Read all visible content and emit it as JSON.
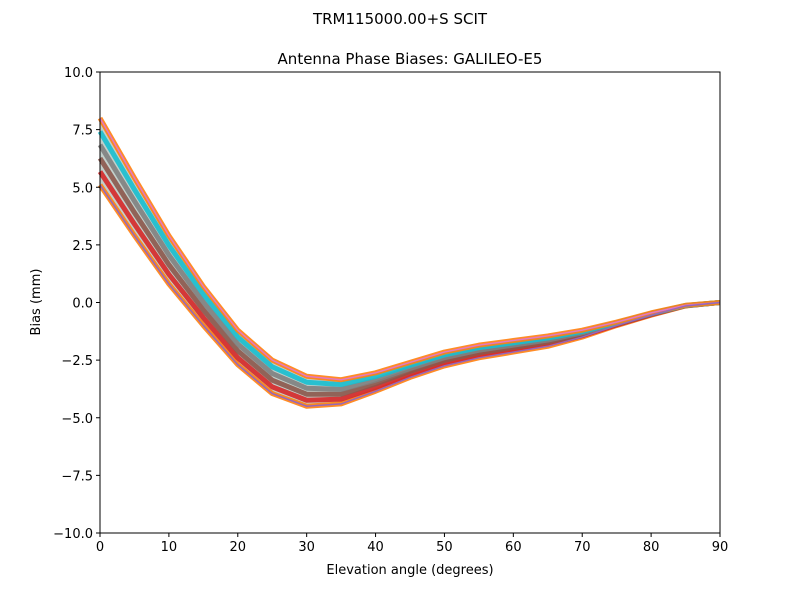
{
  "chart_data": {
    "type": "line",
    "suptitle": "TRM115000.00+S  SCIT",
    "title": "Antenna Phase Biases: GALILEO-E5",
    "xlabel": "Elevation angle (degrees)",
    "ylabel": "Bias (mm)",
    "xlim": [
      0,
      90
    ],
    "ylim": [
      -10,
      10
    ],
    "xticks": [
      0,
      10,
      20,
      30,
      40,
      50,
      60,
      70,
      80,
      90
    ],
    "yticks": [
      -10,
      -7.5,
      -5,
      -2.5,
      0,
      2.5,
      5,
      7.5,
      10
    ],
    "ytick_labels": [
      "−10.0",
      "−7.5",
      "−5.0",
      "−2.5",
      "0.0",
      "2.5",
      "5.0",
      "7.5",
      "10.0"
    ],
    "xtick_labels": [
      "0",
      "10",
      "20",
      "30",
      "40",
      "50",
      "60",
      "70",
      "80",
      "90"
    ],
    "grid": false,
    "x": [
      0,
      5,
      10,
      15,
      20,
      25,
      30,
      35,
      40,
      45,
      50,
      55,
      60,
      65,
      70,
      75,
      80,
      85,
      90
    ],
    "colors": [
      "#1f77b4",
      "#ff7f0e",
      "#2ca02c",
      "#d62728",
      "#9467bd",
      "#8c564b",
      "#e377c2",
      "#7f7f7f",
      "#bcbd22",
      "#17becf"
    ],
    "series": [
      {
        "values": [
          5.1,
          2.9,
          0.8,
          -1.0,
          -2.7,
          -3.95,
          -4.5,
          -4.4,
          -3.85,
          -3.25,
          -2.75,
          -2.4,
          -2.15,
          -1.9,
          -1.5,
          -1.0,
          -0.55,
          -0.15,
          0
        ]
      },
      {
        "values": [
          5.68,
          3.4,
          1.22,
          -0.66,
          -2.4,
          -3.66,
          -4.24,
          -4.19,
          -3.69,
          -3.12,
          -2.63,
          -2.29,
          -2.05,
          -1.81,
          -1.44,
          -0.97,
          -0.53,
          -0.14,
          0
        ]
      },
      {
        "values": [
          6.26,
          3.9,
          1.64,
          -0.32,
          -2.1,
          -3.37,
          -3.98,
          -3.98,
          -3.53,
          -2.99,
          -2.51,
          -2.18,
          -1.95,
          -1.72,
          -1.38,
          -0.94,
          -0.51,
          -0.14,
          0
        ]
      },
      {
        "values": [
          6.84,
          4.4,
          2.06,
          0.02,
          -1.8,
          -3.08,
          -3.72,
          -3.77,
          -3.37,
          -2.86,
          -2.39,
          -2.07,
          -1.85,
          -1.63,
          -1.32,
          -0.91,
          -0.49,
          -0.13,
          0
        ]
      },
      {
        "values": [
          7.42,
          4.9,
          2.48,
          0.36,
          -1.5,
          -2.79,
          -3.46,
          -3.56,
          -3.21,
          -2.73,
          -2.27,
          -1.96,
          -1.75,
          -1.54,
          -1.26,
          -0.88,
          -0.47,
          -0.13,
          0
        ]
      },
      {
        "values": [
          8.0,
          5.4,
          2.9,
          0.7,
          -1.2,
          -2.5,
          -3.2,
          -3.35,
          -3.05,
          -2.6,
          -2.15,
          -1.85,
          -1.65,
          -1.45,
          -1.2,
          -0.85,
          -0.45,
          -0.12,
          0
        ]
      }
    ]
  }
}
